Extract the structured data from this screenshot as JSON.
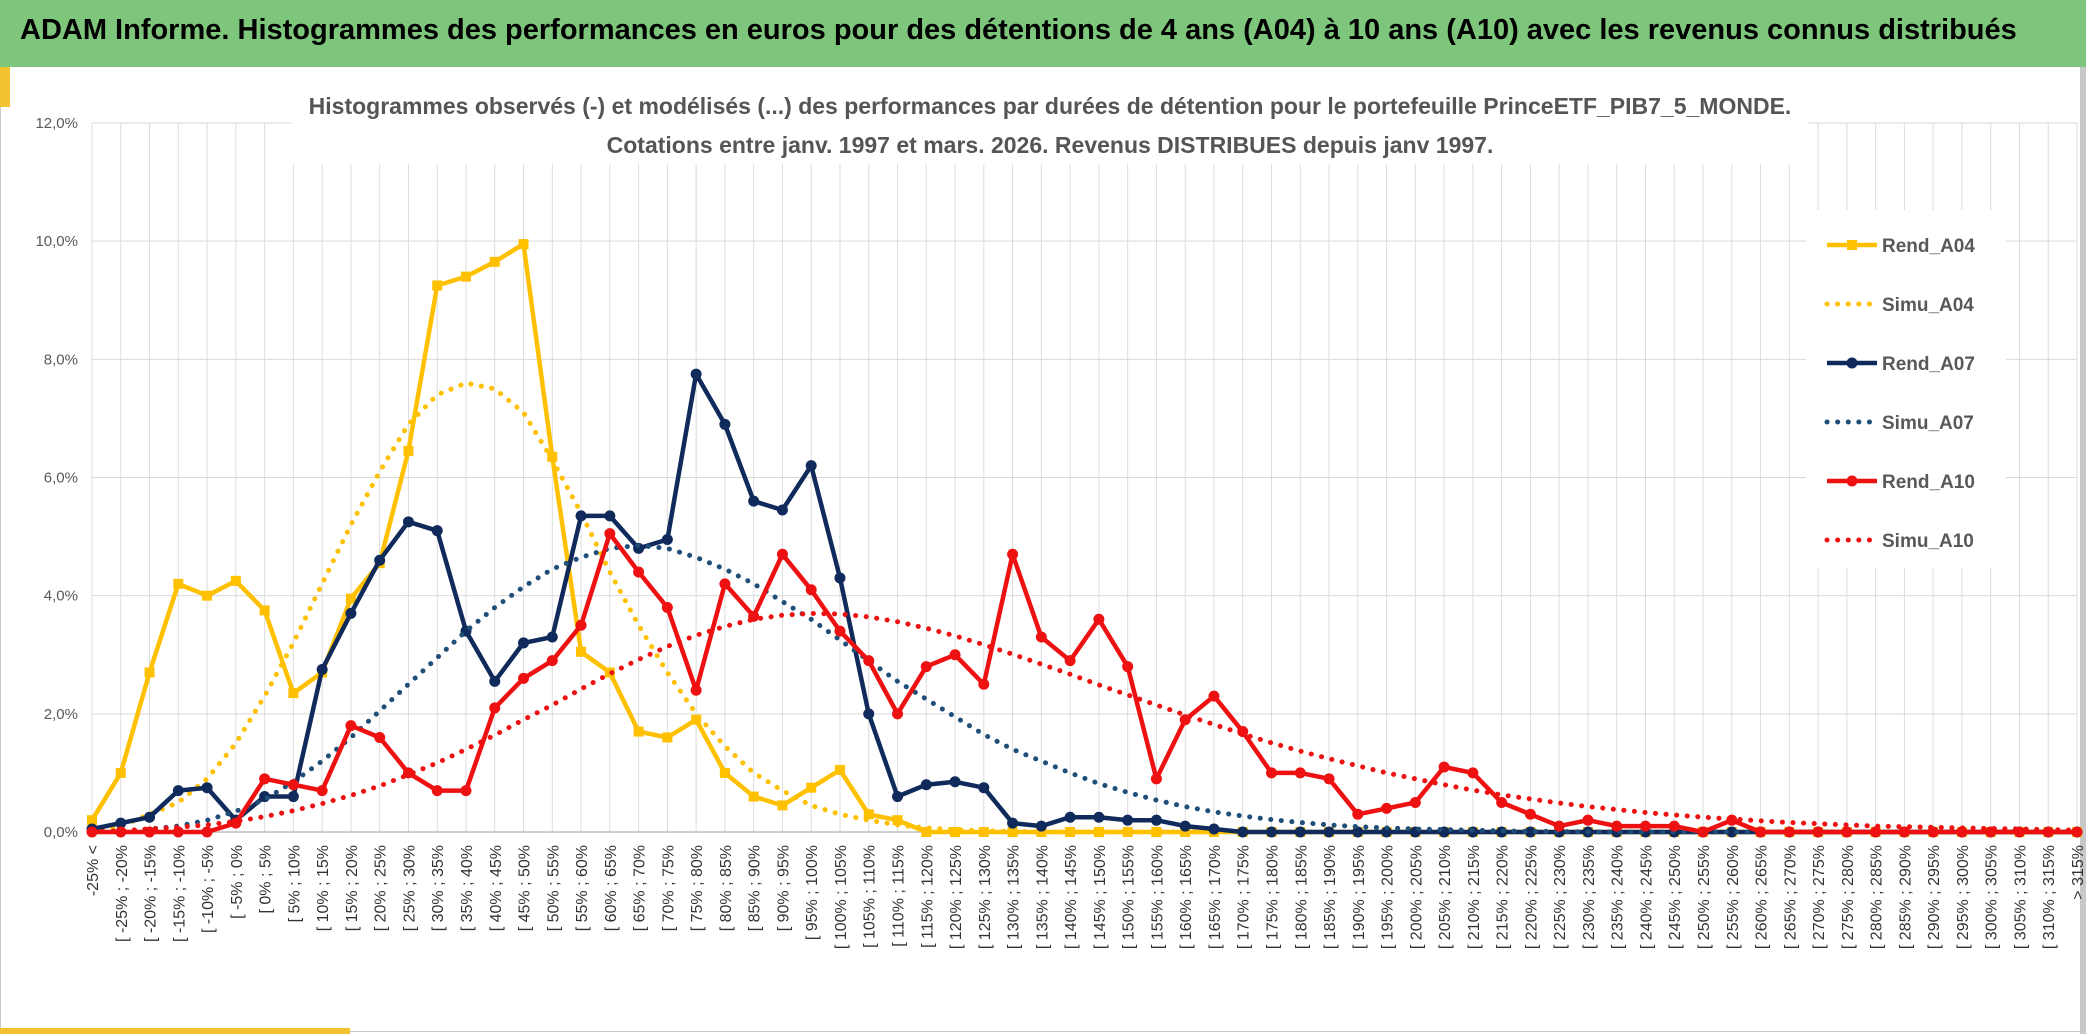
{
  "header": {
    "title": "ADAM Informe. Histogrammes des performances en euros pour des détentions de 4 ans (A04) à 10 ans (A10) avec les revenus connus distribués"
  },
  "chart_data": {
    "type": "line",
    "title": "Histogrammes observés (-) et modélisés (...) des performances par durées de détention pour le portefeuille PrinceETF_PIB7_5_MONDE.",
    "subtitle": "Cotations entre janv. 1997 et mars. 2026. Revenus DISTRIBUES depuis janv 1997.",
    "ylim": [
      0,
      12
    ],
    "yticks": [
      "0,0%",
      "2,0%",
      "4,0%",
      "6,0%",
      "8,0%",
      "10,0%",
      "12,0%"
    ],
    "grid": true,
    "legend_position": "right",
    "categories": [
      "-25% <",
      "[ -25% ; -20%",
      "[ -20% ; -15%",
      "[ -15% ; -10%",
      "[ -10% ; -5%",
      "[ -5% ; 0%",
      "[ 0% ; 5%",
      "[ 5% ; 10%",
      "[ 10% ; 15%",
      "[ 15% ; 20%",
      "[ 20% ; 25%",
      "[ 25% ; 30%",
      "[ 30% ; 35%",
      "[ 35% ; 40%",
      "[ 40% ; 45%",
      "[ 45% ; 50%",
      "[ 50% ; 55%",
      "[ 55% ; 60%",
      "[ 60% ; 65%",
      "[ 65% ; 70%",
      "[ 70% ; 75%",
      "[ 75% ; 80%",
      "[ 80% ; 85%",
      "[ 85% ; 90%",
      "[ 90% ; 95%",
      "[ 95% ; 100%",
      "[ 100% ; 105%",
      "[ 105% ; 110%",
      "[ 110% ; 115%",
      "[ 115% ; 120%",
      "[ 120% ; 125%",
      "[ 125% ; 130%",
      "[ 130% ; 135%",
      "[ 135% ; 140%",
      "[ 140% ; 145%",
      "[ 145% ; 150%",
      "[ 150% ; 155%",
      "[ 155% ; 160%",
      "[ 160% ; 165%",
      "[ 165% ; 170%",
      "[ 170% ; 175%",
      "[ 175% ; 180%",
      "[ 180% ; 185%",
      "[ 185% ; 190%",
      "[ 190% ; 195%",
      "[ 195% ; 200%",
      "[ 200% ; 205%",
      "[ 205% ; 210%",
      "[ 210% ; 215%",
      "[ 215% ; 220%",
      "[ 220% ; 225%",
      "[ 225% ; 230%",
      "[ 230% ; 235%",
      "[ 235% ; 240%",
      "[ 240% ; 245%",
      "[ 245% ; 250%",
      "[ 250% ; 255%",
      "[ 255% ; 260%",
      "[ 260% ; 265%",
      "[ 265% ; 270%",
      "[ 270% ; 275%",
      "[ 275% ; 280%",
      "[ 280% ; 285%",
      "[ 285% ; 290%",
      "[ 290% ; 295%",
      "[ 295% ; 300%",
      "[ 300% ; 305%",
      "[ 305% ; 310%",
      "[ 310% ; 315%",
      "> 315%"
    ],
    "series": [
      {
        "name": "Rend_A04",
        "style": "solid",
        "marker": "square",
        "color": "#ffc000",
        "values": [
          0.2,
          1.0,
          2.7,
          4.2,
          4.0,
          4.25,
          3.75,
          2.35,
          2.7,
          3.95,
          4.55,
          6.45,
          9.25,
          9.4,
          9.65,
          9.95,
          6.35,
          3.05,
          2.7,
          1.7,
          1.6,
          1.9,
          1.0,
          0.6,
          0.45,
          0.75,
          1.05,
          0.3,
          0.2,
          0.0,
          0.0,
          0.0,
          0.0,
          0.0,
          0.0,
          0.0,
          0.0,
          0.0,
          0.0,
          0.0,
          0.0,
          0.0,
          0.0,
          0.0,
          0.0,
          0.0,
          0.0,
          0.0,
          0.0,
          0.0,
          0.0,
          0.0,
          0.0,
          0.0,
          0.0,
          0.0,
          0.0,
          0.0,
          0.0,
          0.0,
          0.0,
          0.0,
          0.0,
          0.0,
          0.0,
          0.0,
          0.0,
          0.0,
          0.0,
          0.0
        ]
      },
      {
        "name": "Simu_A04",
        "style": "dotted",
        "color": "#ffc000",
        "values": [
          0.0,
          0.1,
          0.3,
          0.5,
          0.9,
          1.5,
          2.3,
          3.2,
          4.2,
          5.2,
          6.1,
          6.9,
          7.4,
          7.6,
          7.5,
          7.1,
          6.3,
          5.4,
          4.4,
          3.5,
          2.7,
          2.0,
          1.45,
          1.0,
          0.7,
          0.45,
          0.3,
          0.2,
          0.12,
          0.07,
          0.04,
          0.02,
          0.01,
          0.0,
          0.0,
          0.0,
          0.0,
          0.0,
          0.0,
          0.0,
          0.0,
          0.0,
          0.0,
          0.0,
          0.0,
          0.0,
          0.0,
          0.0,
          0.0,
          0.0,
          0.0,
          0.0,
          0.0,
          0.0,
          0.0,
          0.0,
          0.0,
          0.0,
          0.0,
          0.0,
          0.0,
          0.0,
          0.0,
          0.0,
          0.0,
          0.0,
          0.0,
          0.0,
          0.0,
          0.0
        ]
      },
      {
        "name": "Rend_A07",
        "style": "solid",
        "marker": "circle",
        "color": "#0f2a5b",
        "values": [
          0.05,
          0.15,
          0.25,
          0.7,
          0.75,
          0.2,
          0.6,
          0.6,
          2.75,
          3.7,
          4.6,
          5.25,
          5.1,
          3.4,
          2.55,
          3.2,
          3.3,
          5.35,
          5.35,
          4.8,
          4.95,
          7.75,
          6.9,
          5.6,
          5.45,
          6.2,
          4.3,
          2.0,
          0.6,
          0.8,
          0.85,
          0.75,
          0.15,
          0.1,
          0.25,
          0.25,
          0.2,
          0.2,
          0.1,
          0.05,
          0.0,
          0.0,
          0.0,
          0.0,
          0.0,
          0.0,
          0.0,
          0.0,
          0.0,
          0.0,
          0.0,
          0.0,
          0.0,
          0.0,
          0.0,
          0.0,
          0.0,
          0.0,
          0.0,
          0.0,
          0.0,
          0.0,
          0.0,
          0.0,
          0.0,
          0.0,
          0.0,
          0.0,
          0.0,
          0.0
        ]
      },
      {
        "name": "Simu_A07",
        "style": "dotted",
        "color": "#1f4e79",
        "values": [
          0.0,
          0.02,
          0.05,
          0.1,
          0.2,
          0.35,
          0.55,
          0.85,
          1.2,
          1.6,
          2.05,
          2.5,
          2.95,
          3.4,
          3.8,
          4.15,
          4.45,
          4.65,
          4.8,
          4.85,
          4.8,
          4.65,
          4.45,
          4.2,
          3.9,
          3.6,
          3.25,
          2.9,
          2.55,
          2.25,
          1.95,
          1.65,
          1.4,
          1.2,
          1.0,
          0.82,
          0.67,
          0.54,
          0.43,
          0.34,
          0.27,
          0.21,
          0.16,
          0.12,
          0.09,
          0.07,
          0.05,
          0.04,
          0.03,
          0.02,
          0.01,
          0.01,
          0.0,
          0.0,
          0.0,
          0.0,
          0.0,
          0.0,
          0.0,
          0.0,
          0.0,
          0.0,
          0.0,
          0.0,
          0.0,
          0.0,
          0.0,
          0.0,
          0.0,
          0.0
        ]
      },
      {
        "name": "Rend_A10",
        "style": "solid",
        "marker": "circle",
        "color": "#ee1111",
        "values": [
          0.0,
          0.0,
          0.0,
          0.0,
          0.0,
          0.15,
          0.9,
          0.8,
          0.7,
          1.8,
          1.6,
          1.0,
          0.7,
          0.7,
          2.1,
          2.6,
          2.9,
          3.5,
          5.05,
          4.4,
          3.8,
          2.4,
          4.2,
          3.65,
          4.7,
          4.1,
          3.4,
          2.9,
          2.0,
          2.8,
          3.0,
          2.5,
          4.7,
          3.3,
          2.9,
          3.6,
          2.8,
          0.9,
          1.9,
          2.3,
          1.7,
          1.0,
          1.0,
          0.9,
          0.3,
          0.4,
          0.5,
          1.1,
          1.0,
          0.5,
          0.3,
          0.1,
          0.2,
          0.1,
          0.1,
          0.1,
          0.0,
          0.2,
          0.0,
          0.0,
          0.0,
          0.0,
          0.0,
          0.0,
          0.0,
          0.0,
          0.0,
          0.0,
          0.0,
          0.0
        ]
      },
      {
        "name": "Simu_A10",
        "style": "dotted",
        "color": "#ee1111",
        "values": [
          0.0,
          0.02,
          0.05,
          0.08,
          0.12,
          0.18,
          0.26,
          0.36,
          0.48,
          0.62,
          0.78,
          0.97,
          1.17,
          1.4,
          1.64,
          1.9,
          2.15,
          2.42,
          2.68,
          2.92,
          3.14,
          3.33,
          3.48,
          3.6,
          3.67,
          3.7,
          3.69,
          3.64,
          3.56,
          3.45,
          3.32,
          3.17,
          3.01,
          2.84,
          2.67,
          2.49,
          2.32,
          2.15,
          1.98,
          1.82,
          1.66,
          1.51,
          1.37,
          1.24,
          1.12,
          1.0,
          0.9,
          0.8,
          0.71,
          0.63,
          0.56,
          0.49,
          0.43,
          0.38,
          0.33,
          0.29,
          0.25,
          0.22,
          0.19,
          0.16,
          0.14,
          0.12,
          0.1,
          0.09,
          0.08,
          0.07,
          0.06,
          0.05,
          0.04,
          0.03
        ]
      }
    ]
  }
}
